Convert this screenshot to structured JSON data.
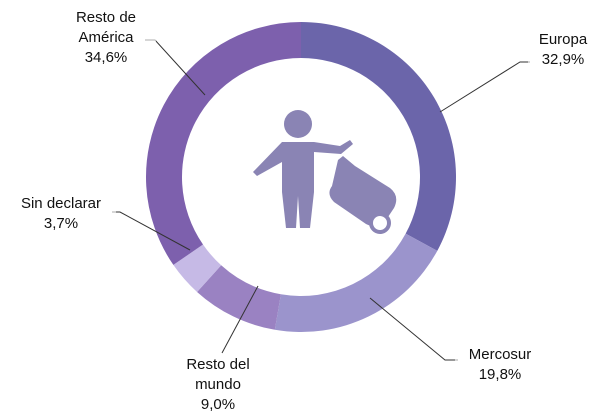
{
  "chart_data": {
    "type": "donut",
    "categories": [
      "Europa",
      "Mercosur",
      "Resto del mundo",
      "Sin declarar",
      "Resto de América"
    ],
    "values": [
      32.9,
      19.8,
      9.0,
      3.7,
      34.6
    ],
    "value_labels": [
      "32,9%",
      "19,8%",
      "9,0%",
      "3,7%",
      "34,6%"
    ],
    "colors": [
      "#6b65aa",
      "#9b94cc",
      "#9a82c2",
      "#c6bae6",
      "#7d60ad"
    ]
  }
}
